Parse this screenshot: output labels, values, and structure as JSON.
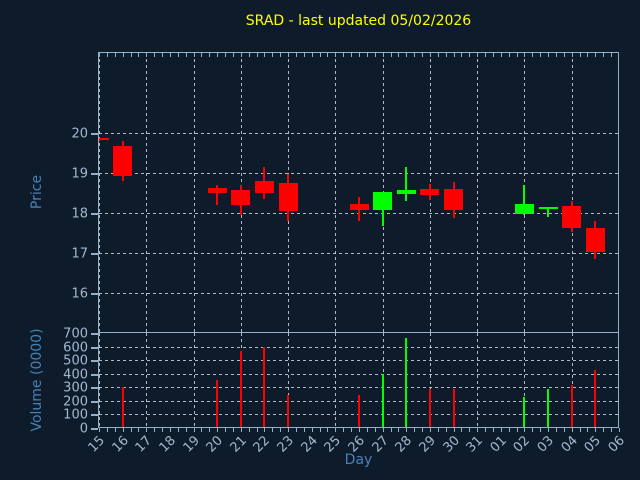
{
  "chart_data": {
    "type": "candlestick",
    "title": "SRAD - last updated 05/02/2026",
    "xlabel": "Day",
    "price_axis": {
      "label": "Price",
      "ticks": [
        20,
        19,
        18,
        17,
        16
      ],
      "ylim": [
        15,
        22
      ]
    },
    "volume_axis": {
      "label": "Volume (0000)",
      "ticks": [
        700,
        600,
        500,
        400,
        300,
        200,
        100,
        0
      ],
      "ylim": [
        0,
        700
      ]
    },
    "x_ticklabels": [
      "15",
      "16",
      "17",
      "18",
      "19",
      "20",
      "21",
      "22",
      "23",
      "24",
      "25",
      "26",
      "27",
      "28",
      "29",
      "30",
      "31",
      "01",
      "02",
      "03",
      "04",
      "05",
      "06"
    ],
    "grid": {
      "style": "dashed",
      "horizontal": true,
      "vertical": "every-other-day"
    },
    "legend": "none",
    "colors": {
      "up": "#00ff00",
      "down": "#ff0000",
      "background": "#0e1b2b",
      "spine": "#93afc9",
      "tick_label": "#a3b8d0",
      "axis_label": "#4682b4",
      "title": "#ffff00",
      "grid": "#cdd6e2"
    },
    "ohlcv": [
      {
        "day": "15",
        "open": 19.87,
        "high": 19.88,
        "low": 19.8,
        "close": 19.83,
        "volume": 0
      },
      {
        "day": "16",
        "open": 19.67,
        "high": 19.79,
        "low": 18.8,
        "close": 18.93,
        "volume": 300
      },
      {
        "day": "20",
        "open": 18.63,
        "high": 18.7,
        "low": 18.2,
        "close": 18.5,
        "volume": 355
      },
      {
        "day": "21",
        "open": 18.57,
        "high": 18.7,
        "low": 17.94,
        "close": 18.19,
        "volume": 570
      },
      {
        "day": "22",
        "open": 18.8,
        "high": 19.15,
        "low": 18.34,
        "close": 18.51,
        "volume": 600
      },
      {
        "day": "23",
        "open": 18.76,
        "high": 18.97,
        "low": 17.8,
        "close": 18.05,
        "volume": 240
      },
      {
        "day": "26",
        "open": 18.23,
        "high": 18.4,
        "low": 17.8,
        "close": 18.07,
        "volume": 240
      },
      {
        "day": "27",
        "open": 18.08,
        "high": 18.53,
        "low": 17.68,
        "close": 18.53,
        "volume": 395
      },
      {
        "day": "28",
        "open": 18.47,
        "high": 19.15,
        "low": 18.3,
        "close": 18.57,
        "volume": 660
      },
      {
        "day": "29",
        "open": 18.59,
        "high": 18.73,
        "low": 18.32,
        "close": 18.43,
        "volume": 290
      },
      {
        "day": "30",
        "open": 18.59,
        "high": 18.78,
        "low": 17.88,
        "close": 18.07,
        "volume": 290
      },
      {
        "day": "02",
        "open": 17.97,
        "high": 18.7,
        "low": 17.95,
        "close": 18.23,
        "volume": 225
      },
      {
        "day": "03",
        "open": 18.08,
        "high": 18.16,
        "low": 17.9,
        "close": 18.14,
        "volume": 290
      },
      {
        "day": "04",
        "open": 18.18,
        "high": 18.3,
        "low": 17.53,
        "close": 17.63,
        "volume": 320
      },
      {
        "day": "05",
        "open": 17.63,
        "high": 17.8,
        "low": 16.86,
        "close": 17.03,
        "volume": 425
      }
    ]
  }
}
